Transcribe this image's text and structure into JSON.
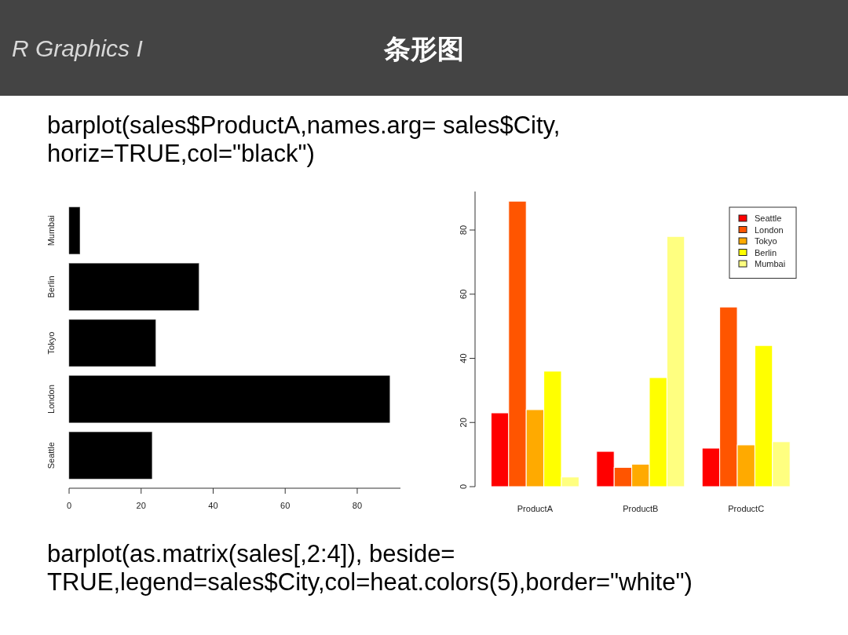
{
  "chart_data": [
    {
      "type": "bar",
      "orientation": "horizontal",
      "categories": [
        "Mumbai",
        "Berlin",
        "Tokyo",
        "London",
        "Seattle"
      ],
      "values": [
        3,
        36,
        24,
        89,
        23
      ],
      "color": "#000000",
      "xlim": [
        0,
        92
      ],
      "xticks": [
        0,
        20,
        40,
        60,
        80
      ],
      "annotations": [
        "R Graphics I",
        "条形图",
        "barplot(sales$ProductA,names.arg= sales$City, horiz=TRUE,col=\"black\")"
      ]
    },
    {
      "type": "bar",
      "categories": [
        "ProductA",
        "ProductB",
        "ProductC"
      ],
      "series": [
        {
          "name": "Seattle",
          "color": "#ff0000",
          "values": [
            23,
            11,
            12
          ]
        },
        {
          "name": "London",
          "color": "#ff5500",
          "values": [
            89,
            6,
            56
          ]
        },
        {
          "name": "Tokyo",
          "color": "#ffaa00",
          "values": [
            24,
            7,
            13
          ]
        },
        {
          "name": "Berlin",
          "color": "#ffff00",
          "values": [
            36,
            34,
            44
          ]
        },
        {
          "name": "Mumbai",
          "color": "#ffff80",
          "values": [
            3,
            78,
            14
          ]
        }
      ],
      "ylim": [
        0,
        92
      ],
      "yticks": [
        0,
        20,
        40,
        60,
        80
      ],
      "legend": "top right",
      "annotations": [
        "barplot(as.matrix(sales[,2:4]), beside= TRUE,legend=sales$City,col=heat.colors(5),border=\"white\")"
      ]
    }
  ]
}
